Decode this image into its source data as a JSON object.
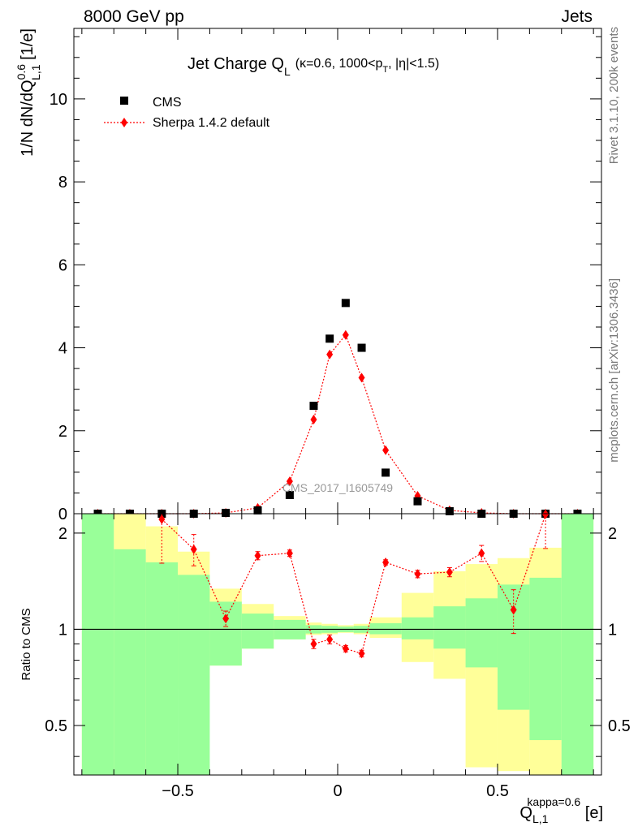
{
  "header": {
    "left": "8000 GeV pp",
    "right": "Jets",
    "side_top": "Rivet 3.1.10,  200k events",
    "side_bottom": "mcplots.cern.ch [arXiv:1306.3436]"
  },
  "colors": {
    "data": "#000000",
    "mc": "#ff0000",
    "band_inner": "#99ff99",
    "band_outer": "#ffff99"
  },
  "chart_data": [
    {
      "type": "scatter",
      "title": "Jet Charge Q",
      "title_sub": "L",
      "title_extra": "(κ=0.6, 1000<p",
      "title_extra_sub": "T",
      "title_extra_end": ", |η|<1.5)",
      "ylabel": "1/N dN/dQ",
      "ylabel_sup": "0.6",
      "ylabel_sub": "L,1",
      "ylabel_end": " [1/e]",
      "watermark": "CMS_2017_I1605749",
      "xlim": [
        -0.825,
        0.825
      ],
      "ylim": [
        0,
        11.7
      ],
      "yticks": [
        0,
        2,
        4,
        6,
        8,
        10
      ],
      "ytick_labels": [
        "0",
        "2",
        "4",
        "6",
        "8",
        "10"
      ],
      "legend_position": "top-left",
      "series": [
        {
          "name": "CMS",
          "marker": "square",
          "x": [
            -0.75,
            -0.65,
            -0.55,
            -0.45,
            -0.35,
            -0.25,
            -0.15,
            -0.075,
            -0.025,
            0.025,
            0.075,
            0.15,
            0.25,
            0.35,
            0.45,
            0.55,
            0.65,
            0.75
          ],
          "y": [
            0.0,
            0.0,
            0.0,
            0.0,
            0.02,
            0.08,
            0.45,
            2.6,
            4.22,
            5.08,
            4.0,
            0.99,
            0.3,
            0.06,
            0.0,
            0.0,
            0.0,
            0.0
          ]
        },
        {
          "name": "Sherpa 1.4.2 default",
          "marker": "diamond",
          "line": "dotted",
          "x": [
            -0.75,
            -0.65,
            -0.55,
            -0.45,
            -0.35,
            -0.25,
            -0.15,
            -0.075,
            -0.025,
            0.025,
            0.075,
            0.15,
            0.25,
            0.35,
            0.45,
            0.55,
            0.65,
            0.75
          ],
          "y": [
            0.0,
            0.0,
            0.0,
            0.0,
            0.02,
            0.14,
            0.78,
            2.27,
            3.84,
            4.31,
            3.28,
            1.53,
            0.43,
            0.08,
            0.02,
            0.0,
            0.0,
            0.0
          ]
        }
      ]
    },
    {
      "type": "scatter",
      "ylabel": "Ratio to CMS",
      "xlabel": "Q",
      "xlabel_sup": "kappa=0.6",
      "xlabel_sub": "L,1",
      "xlabel_end": " [e]",
      "xlim": [
        -0.825,
        0.825
      ],
      "ylim": [
        0.35,
        2.3
      ],
      "yticks": [
        0.5,
        1,
        2
      ],
      "ytick_labels": [
        "0.5",
        "1",
        "2"
      ],
      "xticks": [
        -0.5,
        0,
        0.5
      ],
      "xtick_labels": [
        "−0.5",
        "0",
        "0.5"
      ],
      "reference_line": 1,
      "bins": [
        -0.8,
        -0.7,
        -0.6,
        -0.5,
        -0.4,
        -0.3,
        -0.2,
        -0.1,
        -0.05,
        0,
        0.05,
        0.1,
        0.2,
        0.3,
        0.4,
        0.5,
        0.6,
        0.7,
        0.8
      ],
      "band_inner": {
        "low": [
          0.35,
          0.35,
          0.35,
          0.35,
          0.77,
          0.87,
          0.93,
          0.97,
          0.975,
          0.98,
          0.975,
          0.965,
          0.93,
          0.87,
          0.76,
          0.56,
          0.45,
          0.35
        ],
        "high": [
          2.3,
          1.78,
          1.62,
          1.48,
          1.22,
          1.12,
          1.07,
          1.03,
          1.025,
          1.02,
          1.025,
          1.045,
          1.09,
          1.18,
          1.25,
          1.38,
          1.45,
          2.3
        ]
      },
      "band_outer": {
        "low": [
          0.35,
          0.35,
          0.37,
          0.65,
          0.77,
          0.87,
          0.93,
          0.96,
          0.965,
          0.975,
          0.965,
          0.94,
          0.79,
          0.7,
          0.37,
          0.36,
          0.35,
          0.35
        ],
        "high": [
          2.3,
          2.3,
          2.1,
          1.75,
          1.34,
          1.2,
          1.1,
          1.05,
          1.04,
          1.03,
          1.04,
          1.09,
          1.3,
          1.52,
          1.6,
          1.67,
          1.8,
          2.3
        ]
      },
      "series": [
        {
          "name": "Sherpa 1.4.2 default",
          "marker": "diamond",
          "line": "dotted",
          "x": [
            -0.55,
            -0.45,
            -0.35,
            -0.25,
            -0.15,
            -0.075,
            -0.025,
            0.025,
            0.075,
            0.15,
            0.25,
            0.35,
            0.45,
            0.55,
            0.65
          ],
          "y": [
            2.21,
            1.78,
            1.08,
            1.7,
            1.73,
            0.9,
            0.93,
            0.87,
            0.84,
            1.62,
            1.49,
            1.51,
            1.73,
            1.15,
            2.29
          ],
          "err_low": [
            0.6,
            0.2,
            0.06,
            0.05,
            0.04,
            0.03,
            0.03,
            0.02,
            0.02,
            0.03,
            0.04,
            0.05,
            0.1,
            0.18,
            0.5
          ],
          "err_high": [
            0.6,
            0.2,
            0.06,
            0.05,
            0.04,
            0.03,
            0.03,
            0.02,
            0.02,
            0.03,
            0.04,
            0.05,
            0.1,
            0.18,
            0.5
          ]
        }
      ]
    }
  ]
}
